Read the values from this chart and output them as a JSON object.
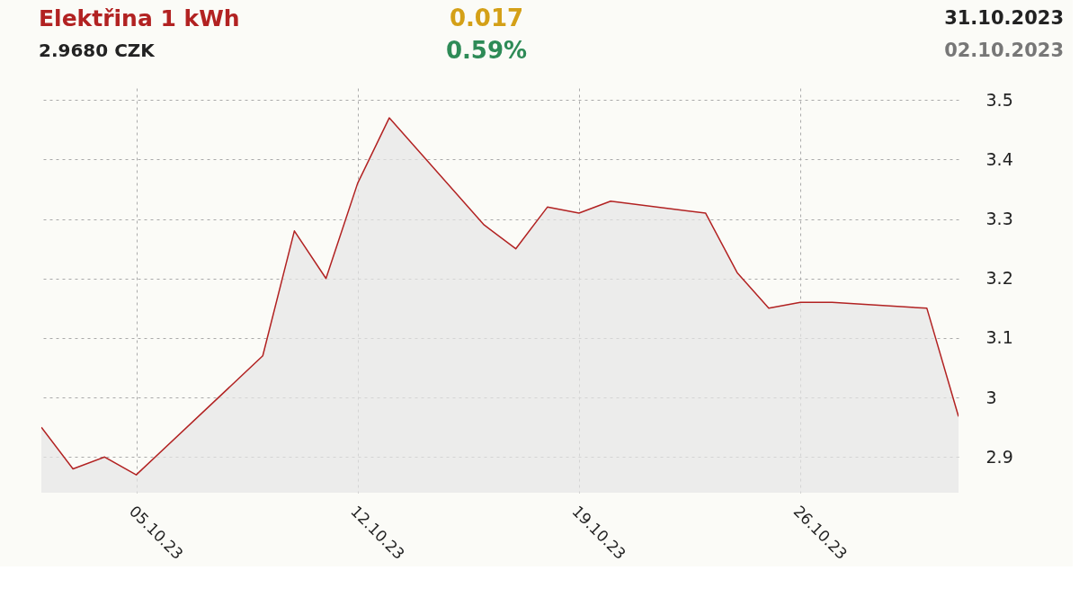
{
  "chart_data": {
    "type": "area",
    "title": "Elektřina 1 kWh",
    "subtitle": "2.9680 CZK",
    "annotations": [
      "0.017",
      "0.59%",
      "31.10.2023",
      "02.10.2023"
    ],
    "x": [
      "2023-10-02",
      "2023-10-03",
      "2023-10-04",
      "2023-10-05",
      "2023-10-09",
      "2023-10-10",
      "2023-10-11",
      "2023-10-12",
      "2023-10-13",
      "2023-10-16",
      "2023-10-17",
      "2023-10-18",
      "2023-10-19",
      "2023-10-20",
      "2023-10-23",
      "2023-10-24",
      "2023-10-25",
      "2023-10-26",
      "2023-10-27",
      "2023-10-30",
      "2023-10-31"
    ],
    "series": [
      {
        "color": "#b22222",
        "values": [
          2.95,
          2.88,
          2.9,
          2.87,
          3.07,
          3.28,
          3.2,
          3.36,
          3.47,
          3.29,
          3.25,
          3.32,
          3.31,
          3.33,
          3.31,
          3.21,
          3.15,
          3.16,
          3.16,
          3.15,
          2.968
        ]
      }
    ],
    "xlim": [
      "2023-10-02",
      "2023-10-31"
    ],
    "xticks": [
      {
        "value": "2023-10-05",
        "label": "05.10.23"
      },
      {
        "value": "2023-10-12",
        "label": "12.10.23"
      },
      {
        "value": "2023-10-19",
        "label": "19.10.23"
      },
      {
        "value": "2023-10-26",
        "label": "26.10.23"
      }
    ],
    "ylim": [
      2.84,
      3.52
    ],
    "yticks": [
      2.9,
      3,
      3.1,
      3.2,
      3.3,
      3.4,
      3.5
    ],
    "grid": true,
    "line_style": "dashed",
    "legend": false,
    "marker": "none"
  }
}
